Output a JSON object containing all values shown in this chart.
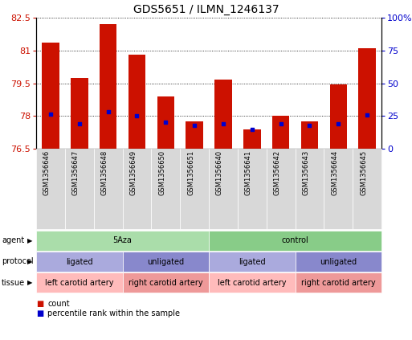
{
  "title": "GDS5651 / ILMN_1246137",
  "samples": [
    "GSM1356646",
    "GSM1356647",
    "GSM1356648",
    "GSM1356649",
    "GSM1356650",
    "GSM1356651",
    "GSM1356640",
    "GSM1356641",
    "GSM1356642",
    "GSM1356643",
    "GSM1356644",
    "GSM1356645"
  ],
  "bar_values": [
    81.35,
    79.75,
    82.2,
    80.8,
    78.9,
    77.75,
    79.65,
    77.4,
    78.0,
    77.75,
    79.45,
    81.1
  ],
  "blue_dot_values": [
    78.1,
    77.65,
    78.2,
    78.0,
    77.7,
    77.55,
    77.65,
    77.4,
    77.65,
    77.55,
    77.65,
    78.05
  ],
  "ylim": [
    76.5,
    82.5
  ],
  "yticks_left": [
    76.5,
    78.0,
    79.5,
    81.0,
    82.5
  ],
  "yticks_right": [
    0,
    25,
    50,
    75,
    100
  ],
  "bar_color": "#cc1100",
  "dot_color": "#0000cc",
  "agent_groups": [
    {
      "label": "5Aza",
      "start": 0,
      "end": 6,
      "color": "#aaddaa"
    },
    {
      "label": "control",
      "start": 6,
      "end": 12,
      "color": "#88cc88"
    }
  ],
  "protocol_groups": [
    {
      "label": "ligated",
      "start": 0,
      "end": 3,
      "color": "#aaaadd"
    },
    {
      "label": "unligated",
      "start": 3,
      "end": 6,
      "color": "#8888cc"
    },
    {
      "label": "ligated",
      "start": 6,
      "end": 9,
      "color": "#aaaadd"
    },
    {
      "label": "unligated",
      "start": 9,
      "end": 12,
      "color": "#8888cc"
    }
  ],
  "tissue_groups": [
    {
      "label": "left carotid artery",
      "start": 0,
      "end": 3,
      "color": "#ffbbbb"
    },
    {
      "label": "right carotid artery",
      "start": 3,
      "end": 6,
      "color": "#ee9999"
    },
    {
      "label": "left carotid artery",
      "start": 6,
      "end": 9,
      "color": "#ffbbbb"
    },
    {
      "label": "right carotid artery",
      "start": 9,
      "end": 12,
      "color": "#ee9999"
    }
  ],
  "row_labels": [
    "agent",
    "protocol",
    "tissue"
  ],
  "legend_items": [
    {
      "label": "count",
      "color": "#cc1100"
    },
    {
      "label": "percentile rank within the sample",
      "color": "#0000cc"
    }
  ],
  "gray_bg": "#d8d8d8"
}
